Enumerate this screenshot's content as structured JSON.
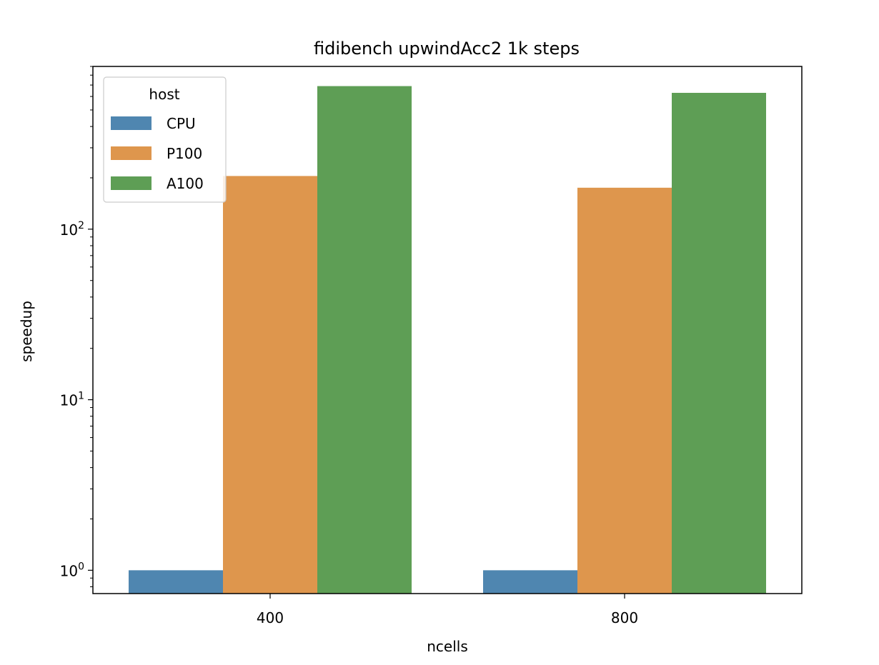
{
  "chart_data": {
    "type": "bar",
    "title": "fidibench upwindAcc2 1k steps",
    "xlabel": "ncells",
    "ylabel": "speedup",
    "yscale": "log",
    "ylim": [
      0.73,
      900
    ],
    "categories": [
      "400",
      "800"
    ],
    "yticks": [
      {
        "value": 1,
        "base": "10",
        "exp": "0"
      },
      {
        "value": 10,
        "base": "10",
        "exp": "1"
      },
      {
        "value": 100,
        "base": "10",
        "exp": "2"
      }
    ],
    "series": [
      {
        "name": "CPU",
        "color": "#4f86b0",
        "values": [
          1,
          1
        ]
      },
      {
        "name": "P100",
        "color": "#de964d",
        "values": [
          205,
          175
        ]
      },
      {
        "name": "A100",
        "color": "#5e9e55",
        "values": [
          690,
          630
        ]
      }
    ],
    "legend": {
      "title": "host",
      "placement": "upper-left"
    },
    "grid": false
  }
}
